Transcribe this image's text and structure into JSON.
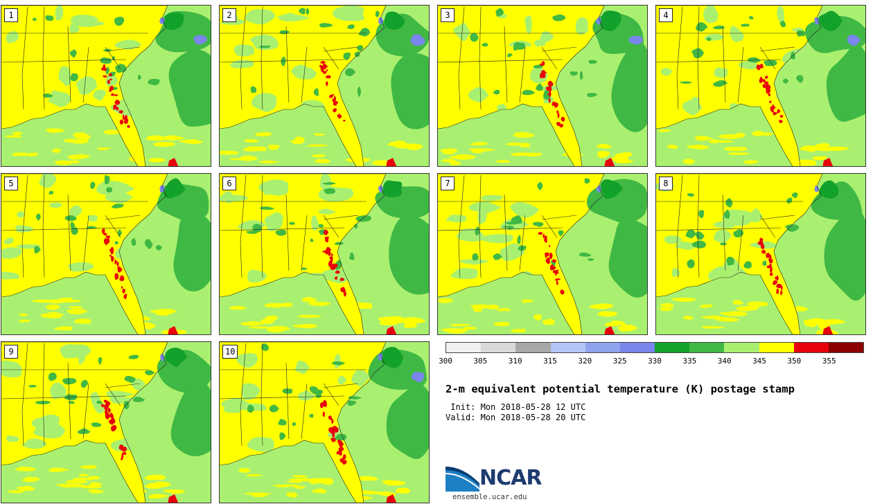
{
  "title": "2-m equivalent potential temperature (K) postage stamp",
  "init": " Init: Mon 2018-05-28 12 UTC",
  "valid": "Valid: Mon 2018-05-28 20 UTC",
  "logo_name": "NCAR",
  "logo_url": "ensemble.ucar.edu",
  "colorbar": {
    "ticks": [
      "300",
      "305",
      "310",
      "315",
      "320",
      "325",
      "330",
      "335",
      "340",
      "345",
      "350",
      "355"
    ],
    "colors": [
      "#f0f0f0",
      "#d9d9d9",
      "#a8a8a8",
      "#b3c6f5",
      "#8fa3ef",
      "#7a86ec",
      "#12a12a",
      "#40b844",
      "#aaf070",
      "#ffff00",
      "#e8000b",
      "#8b0000"
    ]
  },
  "colors": {
    "ocean": "#aaf070",
    "land": "#ffff00",
    "green_mid": "#40b844",
    "green_dark": "#12a12a",
    "blue": "#7a86ec",
    "red": "#e8000b",
    "dark_red": "#8b0000"
  },
  "panels": [
    {
      "label": "1"
    },
    {
      "label": "2"
    },
    {
      "label": "3"
    },
    {
      "label": "4"
    },
    {
      "label": "5"
    },
    {
      "label": "6"
    },
    {
      "label": "7"
    },
    {
      "label": "8"
    },
    {
      "label": "9"
    },
    {
      "label": "10"
    }
  ]
}
